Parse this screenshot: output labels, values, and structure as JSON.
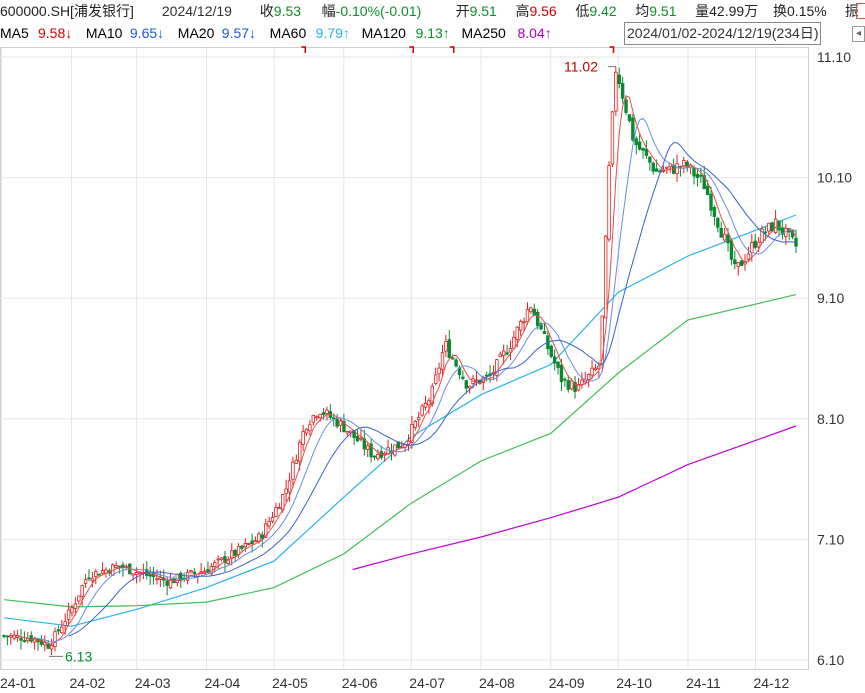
{
  "header": {
    "symbol": "600000.SH[浦发银行]",
    "date": "2024/12/19",
    "close_label": "收",
    "close_value": "9.53",
    "change_label": "幅",
    "change_value": "-0.10%(-0.01)",
    "open_label": "开",
    "open_value": "9.51",
    "high_label": "高",
    "high_value": "9.56",
    "low_label": "低",
    "low_value": "9.42",
    "avg_label": "均",
    "avg_value": "9.51",
    "vol_label": "量",
    "vol_value": "42.99万",
    "turnover_label": "换",
    "turnover_value": "0.15%",
    "amplitude_label": "振"
  },
  "ma_legend": [
    {
      "name": "MA5",
      "value": "9.58↓",
      "color": "#d80000"
    },
    {
      "name": "MA10",
      "value": "9.65↓",
      "color": "#1f57d8"
    },
    {
      "name": "MA20",
      "value": "9.57↓",
      "color": "#1f57d8"
    },
    {
      "name": "MA60",
      "value": "9.79↑",
      "color": "#27b6e6"
    },
    {
      "name": "MA120",
      "value": "9.13↑",
      "color": "#0a8f2a"
    },
    {
      "name": "MA250",
      "value": "8.04↑",
      "color": "#b000c8"
    }
  ],
  "date_range": "2024/01/02-2024/12/19(234日)",
  "chart_data": {
    "type": "candlestick",
    "title": "",
    "xlabel": "",
    "ylabel": "",
    "ylim": [
      6.1,
      11.1
    ],
    "y_ticks": [
      "11.10",
      "10.10",
      "9.10",
      "8.10",
      "7.10",
      "6.10"
    ],
    "x_ticks": [
      "24-01",
      "24-02",
      "24-03",
      "24-04",
      "24-05",
      "24-06",
      "24-07",
      "24-08",
      "24-09",
      "24-10",
      "24-11",
      "24-12"
    ],
    "grid": true,
    "annotations": [
      {
        "text": "11.02",
        "date": "2024-09-30",
        "value": 11.02
      },
      {
        "text": "6.13",
        "date": "2024-01-22",
        "value": 6.13
      }
    ],
    "close_series": {
      "dates": [
        "2024-01-02",
        "2024-01-15",
        "2024-01-22",
        "2024-02-01",
        "2024-02-08",
        "2024-02-22",
        "2024-03-01",
        "2024-03-15",
        "2024-04-01",
        "2024-04-15",
        "2024-04-25",
        "2024-05-06",
        "2024-05-15",
        "2024-05-21",
        "2024-05-31",
        "2024-06-14",
        "2024-06-28",
        "2024-07-10",
        "2024-07-16",
        "2024-07-26",
        "2024-08-05",
        "2024-08-14",
        "2024-08-23",
        "2024-08-30",
        "2024-09-06",
        "2024-09-13",
        "2024-09-23",
        "2024-09-25",
        "2024-09-27",
        "2024-09-30",
        "2024-10-08",
        "2024-10-18",
        "2024-10-31",
        "2024-11-08",
        "2024-11-18",
        "2024-11-22",
        "2024-12-02",
        "2024-12-10",
        "2024-12-19"
      ],
      "values": [
        6.3,
        6.28,
        6.22,
        6.52,
        6.8,
        6.88,
        6.83,
        6.75,
        6.85,
        7.0,
        7.12,
        7.5,
        8.05,
        8.18,
        8.05,
        7.8,
        7.9,
        8.3,
        8.72,
        8.38,
        8.45,
        8.72,
        9.05,
        8.72,
        8.42,
        8.35,
        8.55,
        9.4,
        10.2,
        11.02,
        10.4,
        10.15,
        10.2,
        10.05,
        9.55,
        9.32,
        9.6,
        9.72,
        9.53
      ]
    },
    "series": [
      {
        "name": "MA60",
        "x": [
          "2024-01-02",
          "2024-02-01",
          "2024-03-01",
          "2024-04-01",
          "2024-05-01",
          "2024-06-01",
          "2024-07-01",
          "2024-08-01",
          "2024-09-01",
          "2024-10-01",
          "2024-11-01",
          "2024-12-19"
        ],
        "values": [
          6.45,
          6.38,
          6.52,
          6.7,
          6.92,
          7.45,
          7.95,
          8.3,
          8.55,
          9.15,
          9.45,
          9.79
        ]
      },
      {
        "name": "MA120",
        "x": [
          "2024-01-02",
          "2024-02-01",
          "2024-03-01",
          "2024-04-01",
          "2024-05-01",
          "2024-06-01",
          "2024-07-01",
          "2024-08-01",
          "2024-09-01",
          "2024-10-01",
          "2024-11-01",
          "2024-12-19"
        ],
        "values": [
          6.6,
          6.54,
          6.55,
          6.58,
          6.7,
          6.98,
          7.4,
          7.75,
          7.98,
          8.48,
          8.92,
          9.13
        ]
      },
      {
        "name": "MA250",
        "x": [
          "2024-06-05",
          "2024-07-01",
          "2024-08-01",
          "2024-09-01",
          "2024-10-01",
          "2024-11-01",
          "2024-12-19"
        ],
        "values": [
          6.85,
          6.98,
          7.12,
          7.28,
          7.45,
          7.72,
          8.04
        ]
      }
    ]
  },
  "colors": {
    "up": "#e02020",
    "down": "#0a8a30",
    "grid": "#e6e6e6",
    "axis_text": "#333333"
  }
}
